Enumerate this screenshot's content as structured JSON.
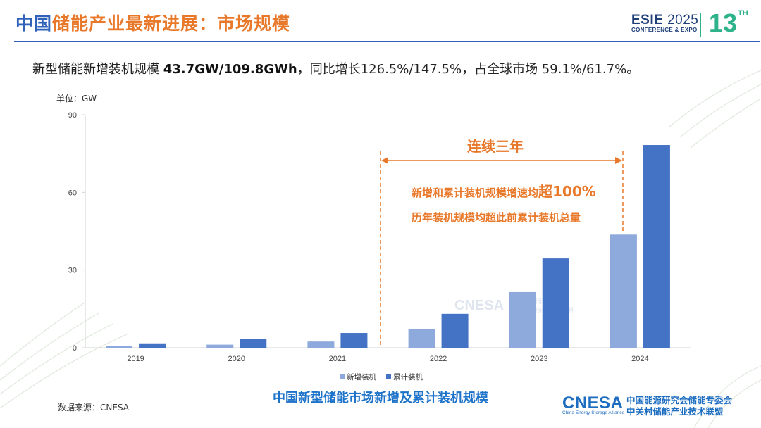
{
  "header": {
    "title_part1": "中国",
    "title_part2": "储能产业最新进展：市场规模",
    "logo_esie": "ESIE",
    "logo_year": "2025",
    "logo_sub": "CONFERENCE & EXPO",
    "logo_num": "13",
    "logo_sup": "TH"
  },
  "subtitle": {
    "lead": "新型储能新增装机规模 ",
    "bold": "43.7GW/109.8GWh",
    "rest": "，同比增长126.5%/147.5%，占全球市场 59.1%/61.7%。"
  },
  "unit_label": "单位：GW",
  "annotations": {
    "bracket_label": "连续三年",
    "line1_prefix": "新增和累计装机规模增速均",
    "line1_emph": "超100%",
    "line2": "历年装机规模均超此前累计装机总量"
  },
  "watermark": {
    "word": "CNESA",
    "line1": "储能专委会",
    "line2": "储能技术联盟"
  },
  "caption": "中国新型储能市场新增及累计装机规模",
  "source": "数据来源：CNESA",
  "footer_logo": {
    "word": "CNESA",
    "sub": "China Energy Storage Alliance",
    "org_line1": "中国能源研究会储能专委会",
    "org_line2": "中关村储能产业技术联盟"
  },
  "colors": {
    "title_blue": "#2f62b8",
    "title_orange": "#e8782a",
    "series_new": "#8eaadc",
    "series_cumulative": "#4472c4",
    "annotation_orange": "#e8782a",
    "caption_blue": "#1d72c9",
    "accent_green": "#2db28a"
  },
  "chart_data": {
    "type": "bar",
    "categories": [
      "2019",
      "2020",
      "2021",
      "2022",
      "2023",
      "2024"
    ],
    "series": [
      {
        "name": "新增装机",
        "values": [
          0.6,
          1.2,
          2.4,
          7.3,
          21.5,
          43.7
        ]
      },
      {
        "name": "累计装机",
        "values": [
          1.7,
          3.3,
          5.7,
          13.1,
          34.5,
          78.3
        ]
      }
    ],
    "ylabel": "单位：GW",
    "xlabel": "",
    "ylim": [
      0,
      90
    ],
    "yticks": [
      0,
      30,
      60,
      90
    ],
    "legend_position": "bottom",
    "grid": false
  }
}
